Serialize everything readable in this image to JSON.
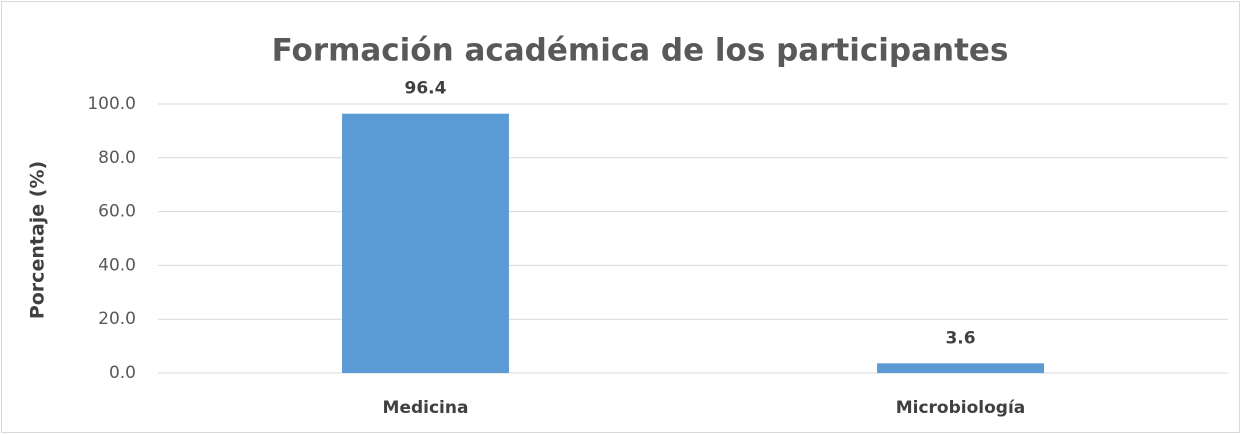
{
  "chart_data": {
    "type": "bar",
    "title": "Formación académica de los participantes",
    "y_label": "Porcentaje (%)",
    "categories": [
      "Medicina",
      "Microbiología"
    ],
    "values": [
      96.4,
      3.6
    ],
    "color": "#5b9bd5",
    "ylim": [
      0,
      100
    ],
    "yticks": [
      {
        "value": 0,
        "label": "0.0"
      },
      {
        "value": 20,
        "label": "20.0"
      },
      {
        "value": 40,
        "label": "40.0"
      },
      {
        "value": 60,
        "label": "60.0"
      },
      {
        "value": 80,
        "label": "80.0"
      },
      {
        "value": 100,
        "label": "100.0"
      }
    ],
    "grid": true
  }
}
